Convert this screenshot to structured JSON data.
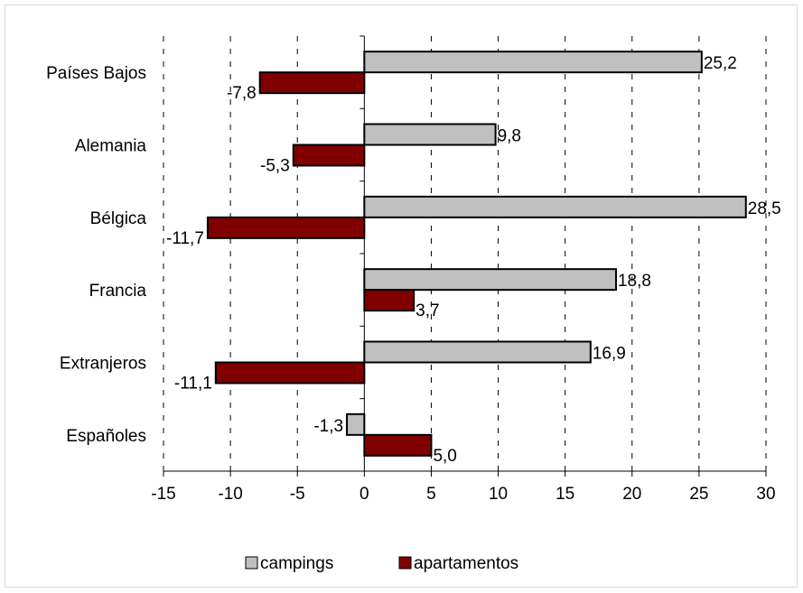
{
  "chart_data": {
    "type": "bar",
    "orientation": "horizontal",
    "categories": [
      "Países Bajos",
      "Alemania",
      "Bélgica",
      "Francia",
      "Extranjeros",
      "Españoles"
    ],
    "series": [
      {
        "name": "campings",
        "values": [
          25.2,
          9.8,
          28.5,
          18.8,
          16.9,
          -1.3
        ],
        "labels": [
          "25,2",
          "9,8",
          "28,5",
          "18,8",
          "16,9",
          "-1,3"
        ],
        "color": "#c0c0c0"
      },
      {
        "name": "apartamentos",
        "values": [
          -7.8,
          -5.3,
          -11.7,
          3.7,
          -11.1,
          5.0
        ],
        "labels": [
          "-7,8",
          "-5,3",
          "-11,7",
          "3,7",
          "-11,1",
          "5,0"
        ],
        "color": "#800000"
      }
    ],
    "xlim": [
      -15,
      30
    ],
    "xticks": [
      -15,
      -10,
      -5,
      0,
      5,
      10,
      15,
      20,
      25,
      30
    ],
    "grid": true,
    "legend_position": "bottom"
  }
}
